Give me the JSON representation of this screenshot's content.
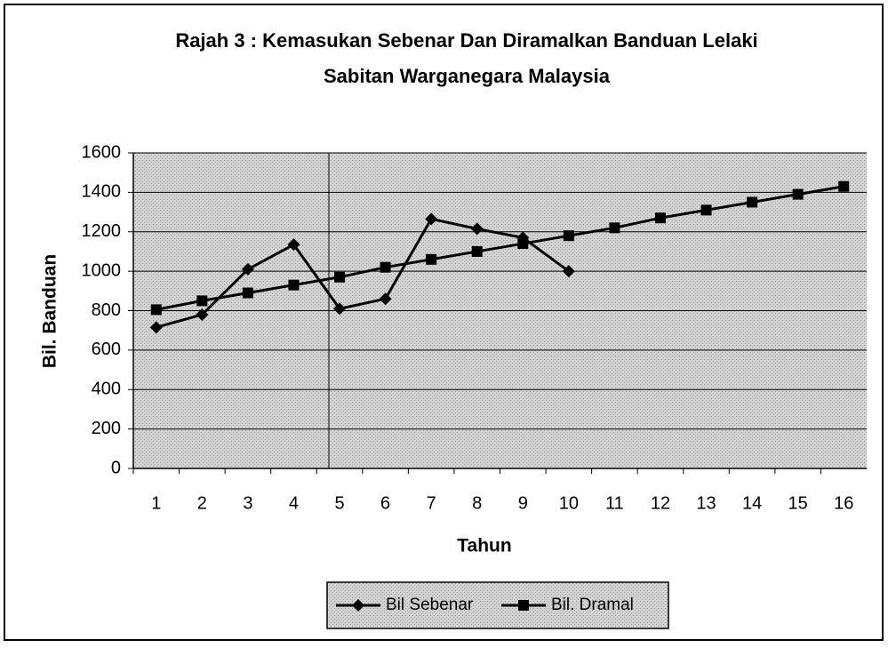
{
  "chart_data": {
    "type": "line",
    "title": [
      "Rajah 3 : Kemasukan Sebenar Dan Diramalkan Banduan Lelaki",
      "Sabitan Warganegara Malaysia"
    ],
    "x_label": "Tahun",
    "y_label": "Bil. Banduan",
    "categories": [
      1,
      2,
      3,
      4,
      5,
      6,
      7,
      8,
      9,
      10,
      11,
      12,
      13,
      14,
      15,
      16
    ],
    "series": [
      {
        "name": "Bil Sebenar",
        "color": "#000000",
        "marker": "diamond",
        "values": [
          715,
          780,
          1010,
          1135,
          810,
          860,
          1265,
          1215,
          1170,
          1000,
          null,
          null,
          null,
          null,
          null,
          null
        ]
      },
      {
        "name": "Bil. Dramal",
        "color": "#000000",
        "marker": "square",
        "values": [
          805,
          850,
          890,
          930,
          970,
          1020,
          1060,
          1100,
          1140,
          1180,
          1220,
          1270,
          1310,
          1350,
          1390,
          1430
        ]
      }
    ],
    "ylim": [
      0,
      1600
    ],
    "yticks": [
      0,
      200,
      400,
      600,
      800,
      1000,
      1200,
      1400,
      1600
    ],
    "grid": true,
    "legend": "bottom"
  }
}
